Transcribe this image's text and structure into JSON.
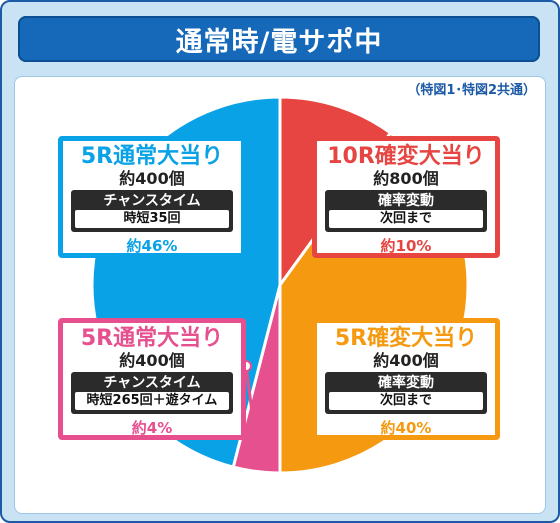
{
  "header": {
    "title": "通常時/電サポ中"
  },
  "note": "（特図1･特図2共通）",
  "colors": {
    "blue": "#0aa2e6",
    "red": "#e64541",
    "orange": "#f59a10",
    "pink": "#e6508f"
  },
  "chart_data": {
    "type": "pie",
    "title": "通常時/電サポ中",
    "slices": [
      {
        "label": "10R確変大当り",
        "payout": "約800個",
        "bonus_label": "確率変動",
        "bonus_detail": "次回まで",
        "percent_label": "約10%",
        "value": 10,
        "color": "#e64541"
      },
      {
        "label": "5R確変大当り",
        "payout": "約400個",
        "bonus_label": "確率変動",
        "bonus_detail": "次回まで",
        "percent_label": "約40%",
        "value": 40,
        "color": "#f59a10"
      },
      {
        "label": "5R通常大当り",
        "payout": "約400個",
        "bonus_label": "チャンスタイム",
        "bonus_detail": "時短265回＋遊タイム",
        "percent_label": "約4%",
        "value": 4,
        "color": "#e6508f"
      },
      {
        "label": "5R通常大当り",
        "payout": "約400個",
        "bonus_label": "チャンスタイム",
        "bonus_detail": "時短35回",
        "percent_label": "約46%",
        "value": 46,
        "color": "#0aa2e6"
      }
    ]
  }
}
